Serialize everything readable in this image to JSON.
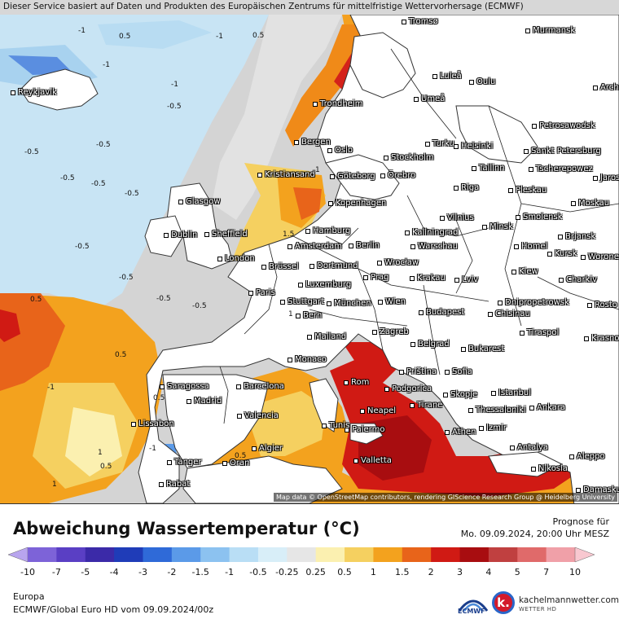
{
  "banner": "Dieser Service basiert auf Daten und Produkten des Europäischen Zentrums für mittelfristige Wettervorhersage (ECMWF)",
  "attribution": "Map data © OpenStreetMap contributors, rendering GIScience Research Group @ Heidelberg University",
  "title": "Abweichung Wassertemperatur (°C)",
  "forecast_label": "Prognose für",
  "forecast_date": "Mo. 09.09.2024, 20:00 Uhr MESZ",
  "region": "Europa",
  "model": "ECMWF/Global Euro HD vom  09.09.2024/00z",
  "logo_ecmwf": "ECMWF",
  "logo_kachel_name": "kachelmannwetter.com",
  "logo_kachel_sub": "WETTER HD",
  "logo_kachel_letter": "k.",
  "colorbar": {
    "ticks": [
      "-10",
      "-7",
      "-5",
      "-4",
      "-3",
      "-2",
      "-1.5",
      "-1",
      "-0.5",
      "-0.25",
      "0.25",
      "0.5",
      "1",
      "1.5",
      "2",
      "3",
      "4",
      "5",
      "7",
      "10"
    ],
    "colors": [
      "#b8a5ee",
      "#7d63d8",
      "#5a3fc4",
      "#3b2aa8",
      "#1f3cb8",
      "#2f6ad8",
      "#5b9ae8",
      "#8cc2f0",
      "#b9def5",
      "#d8eef8",
      "#e6e6e6",
      "#fbf0b0",
      "#f5d060",
      "#f3a21e",
      "#e8641a",
      "#d01a14",
      "#a80d10",
      "#c04040",
      "#e06a6a",
      "#f0a0a8",
      "#f8c8d0"
    ],
    "colors_note": "21 color bins between arrows"
  },
  "cities": [
    {
      "name": "Tromsø"
    },
    {
      "name": "Murmansk"
    },
    {
      "name": "Reykjavik"
    },
    {
      "name": "Luleå"
    },
    {
      "name": "Oulu"
    },
    {
      "name": "Arch"
    },
    {
      "name": "Umeå"
    },
    {
      "name": "Trondheim"
    },
    {
      "name": "Petrosawodsk"
    },
    {
      "name": "Bergen"
    },
    {
      "name": "Turku"
    },
    {
      "name": "Helsinki"
    },
    {
      "name": "Sankt Petersburg"
    },
    {
      "name": "Oslo"
    },
    {
      "name": "Stockholm"
    },
    {
      "name": "Tallinn"
    },
    {
      "name": "Tscherepowez"
    },
    {
      "name": "Jaros"
    },
    {
      "name": "Kristiansand"
    },
    {
      "name": "Göteborg"
    },
    {
      "name": "Örebro"
    },
    {
      "name": "Riga"
    },
    {
      "name": "Pleskau"
    },
    {
      "name": "Glasgow"
    },
    {
      "name": "Kopenhagen"
    },
    {
      "name": "Moskau"
    },
    {
      "name": "Vilnius"
    },
    {
      "name": "Minsk"
    },
    {
      "name": "Smolensk"
    },
    {
      "name": "Dublin"
    },
    {
      "name": "Sheffield"
    },
    {
      "name": "Hamburg"
    },
    {
      "name": "Kaliningrad"
    },
    {
      "name": "Brjansk"
    },
    {
      "name": "Amsterdam"
    },
    {
      "name": "Berlin"
    },
    {
      "name": "Warschau"
    },
    {
      "name": "Homel"
    },
    {
      "name": "Kursk"
    },
    {
      "name": "Worone"
    },
    {
      "name": "London"
    },
    {
      "name": "Dortmund"
    },
    {
      "name": "Wrocław"
    },
    {
      "name": "Brüssel"
    },
    {
      "name": "Kiew"
    },
    {
      "name": "Prag"
    },
    {
      "name": "Krakau"
    },
    {
      "name": "Charkiv"
    },
    {
      "name": "Luxemburg"
    },
    {
      "name": "Lviv"
    },
    {
      "name": "Paris"
    },
    {
      "name": "Stuttgart"
    },
    {
      "name": "München"
    },
    {
      "name": "Wien"
    },
    {
      "name": "Dnipropetrowsk"
    },
    {
      "name": "Rosto"
    },
    {
      "name": "Budapest"
    },
    {
      "name": "Chisinau"
    },
    {
      "name": "Bern"
    },
    {
      "name": "Mailand"
    },
    {
      "name": "Zagreb"
    },
    {
      "name": "Tiraspol"
    },
    {
      "name": "Krasno"
    },
    {
      "name": "Belgrad"
    },
    {
      "name": "Bukarest"
    },
    {
      "name": "Monaco"
    },
    {
      "name": "Priština"
    },
    {
      "name": "Sofia"
    },
    {
      "name": "Saragossa"
    },
    {
      "name": "Barcelona"
    },
    {
      "name": "Rom"
    },
    {
      "name": "Podgorica"
    },
    {
      "name": "Skopje"
    },
    {
      "name": "Istanbul"
    },
    {
      "name": "Madrid"
    },
    {
      "name": "Neapel"
    },
    {
      "name": "Tirane"
    },
    {
      "name": "Thessaloniki"
    },
    {
      "name": "Ankara"
    },
    {
      "name": "Valencia"
    },
    {
      "name": "Palermo"
    },
    {
      "name": "Athen"
    },
    {
      "name": "Izmir"
    },
    {
      "name": "Lissabon"
    },
    {
      "name": "Antalya"
    },
    {
      "name": "Aleppo"
    },
    {
      "name": "Algier"
    },
    {
      "name": "Tunis"
    },
    {
      "name": "Valletta"
    },
    {
      "name": "Tanger"
    },
    {
      "name": "Oran"
    },
    {
      "name": "Nikosia"
    },
    {
      "name": "Rabat"
    },
    {
      "name": "Damaskus"
    }
  ],
  "anomaly_labels": [
    {
      "text": "-1"
    },
    {
      "text": "0.5"
    },
    {
      "text": "-1"
    },
    {
      "text": "0.5"
    },
    {
      "text": "-1"
    },
    {
      "text": "-1"
    },
    {
      "text": "-0.5"
    },
    {
      "text": "-0.5"
    },
    {
      "text": "-0.5"
    },
    {
      "text": "-0.5"
    },
    {
      "text": "-0.5"
    },
    {
      "text": "-0.5"
    },
    {
      "text": "-0.5"
    },
    {
      "text": "-0.5"
    },
    {
      "text": "-0.5"
    },
    {
      "text": "-0.5"
    },
    {
      "text": "1.5"
    },
    {
      "text": "0.5"
    },
    {
      "text": "0.5"
    },
    {
      "text": "0.5"
    },
    {
      "text": "1"
    },
    {
      "text": "1"
    },
    {
      "text": "0.5"
    },
    {
      "text": "-1"
    },
    {
      "text": "1"
    },
    {
      "text": "0.5"
    },
    {
      "text": "1"
    },
    {
      "text": "-1"
    }
  ]
}
